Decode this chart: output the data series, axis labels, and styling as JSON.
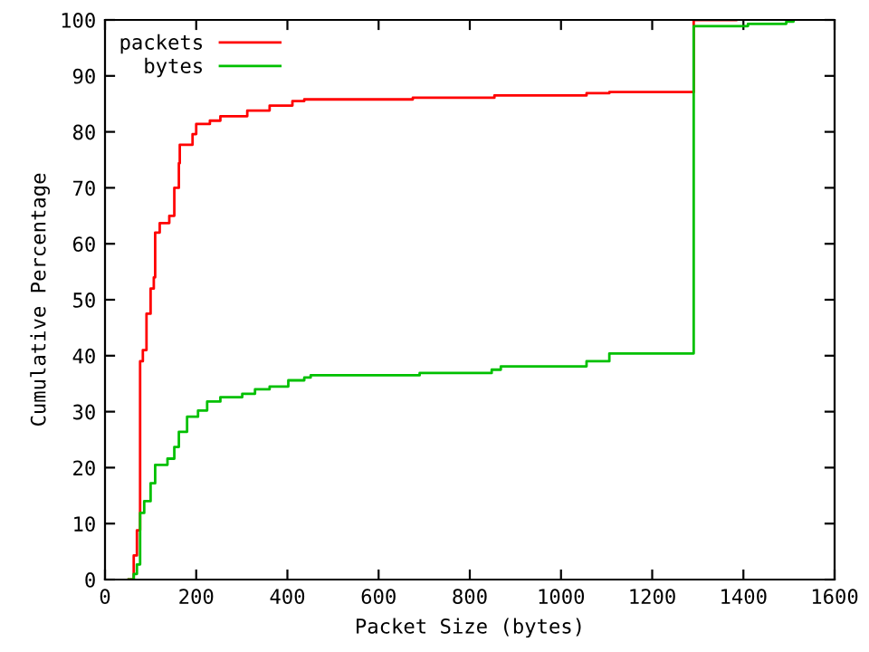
{
  "chart_data": {
    "type": "step",
    "xlabel": "Packet Size (bytes)",
    "ylabel": "Cumulative Percentage",
    "xlim": [
      0,
      1600
    ],
    "xticks": [
      0,
      200,
      400,
      600,
      800,
      1000,
      1200,
      1400,
      1600
    ],
    "ylim": [
      0,
      100
    ],
    "yticks": [
      0,
      10,
      20,
      30,
      40,
      50,
      60,
      70,
      80,
      90,
      100
    ],
    "grid": false,
    "legend": "top left",
    "line_style": "solid",
    "series": [
      {
        "name": "packets",
        "color": "#ff0000",
        "x": [
          52,
          63,
          70,
          77,
          83,
          91,
          100,
          107,
          110,
          120,
          141,
          152,
          162,
          164,
          192,
          200,
          230,
          253,
          312,
          361,
          411,
          437,
          675,
          854,
          1056,
          1106,
          1291,
          1384
        ],
        "values": [
          0,
          4.3,
          8.8,
          39,
          41,
          47.5,
          52,
          54,
          62,
          63.7,
          65,
          70,
          74.4,
          77.7,
          79.6,
          81.4,
          82,
          82.8,
          83.8,
          84.7,
          85.5,
          85.8,
          86.1,
          86.5,
          86.9,
          87.1,
          100,
          100
        ]
      },
      {
        "name": "bytes",
        "color": "#00c000",
        "x": [
          52,
          63,
          70,
          77,
          86,
          100,
          110,
          137,
          152,
          162,
          180,
          204,
          224,
          253,
          301,
          329,
          361,
          402,
          437,
          451,
          690,
          848,
          868,
          1056,
          1106,
          1291,
          1410,
          1494,
          1510
        ],
        "values": [
          0,
          1,
          2.7,
          11.9,
          14,
          17.2,
          20.5,
          21.6,
          23.7,
          26.4,
          29.1,
          30.2,
          31.8,
          32.6,
          33.2,
          34,
          34.5,
          35.6,
          36.1,
          36.5,
          36.9,
          37.5,
          38.1,
          39,
          40.4,
          98.9,
          99.3,
          99.7,
          100
        ]
      }
    ]
  }
}
